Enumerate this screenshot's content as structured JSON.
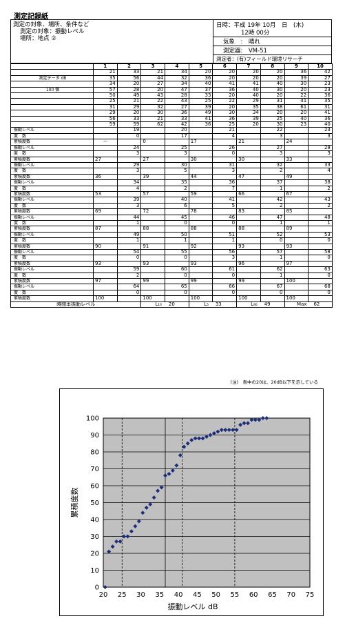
{
  "doc": {
    "title": "測定記録紙",
    "header_left": [
      "測定の対象、場所、条件など",
      "測定の対象：振動レベル",
      "場所：地点 ②"
    ],
    "header_right": {
      "date": "日時：平成 19年 10月　日　(木)",
      "time": "12時 00分",
      "weather": "気象　:　晴れ",
      "instrument": "測定器:　VM-51",
      "measurer": "測定者：(有)フィールド環境リサーチ"
    }
  },
  "table": {
    "col_headers": [
      "1",
      "2",
      "3",
      "4",
      "5",
      "6",
      "7",
      "8",
      "9",
      "10"
    ],
    "side_label_1": "測定データ dB",
    "side_label_2": "100 個",
    "data_rows": [
      [
        "21",
        "33",
        "21",
        "34",
        "20",
        "20",
        "20",
        "20",
        "36",
        "42"
      ],
      [
        "35",
        "56",
        "44",
        "32",
        "36",
        "20",
        "20",
        "20",
        "39",
        "27"
      ],
      [
        "34",
        "20",
        "27",
        "34",
        "40",
        "41",
        "41",
        "40",
        "30",
        "23"
      ],
      [
        "57",
        "28",
        "20",
        "47",
        "37",
        "36",
        "40",
        "30",
        "20",
        "23"
      ],
      [
        "50",
        "49",
        "43",
        "28",
        "33",
        "20",
        "40",
        "20",
        "22",
        "36"
      ],
      [
        "25",
        "21",
        "22",
        "43",
        "25",
        "22",
        "29",
        "31",
        "41",
        "35"
      ],
      [
        "31",
        "29",
        "32",
        "27",
        "39",
        "20",
        "35",
        "38",
        "61",
        "31"
      ],
      [
        "29",
        "20",
        "30",
        "36",
        "49",
        "30",
        "34",
        "20",
        "20",
        "41"
      ],
      [
        "56",
        "33",
        "21",
        "33",
        "41",
        "36",
        "39",
        "25",
        "40",
        "36"
      ],
      [
        "59",
        "59",
        "62",
        "42",
        "36",
        "25",
        "20",
        "30",
        "23",
        "40"
      ]
    ],
    "labels": {
      "level": "振動レベル",
      "freq": "度　数",
      "cum": "累積度数"
    },
    "groups": [
      {
        "level": [
          "19",
          "20",
          "21",
          "22",
          "23"
        ],
        "freq": [
          "0",
          "17",
          "4",
          "3",
          "3"
        ],
        "cum": [
          "－",
          "0",
          "17",
          "21",
          "24"
        ]
      },
      {
        "level": [
          "24",
          "25",
          "26",
          "27",
          "28"
        ],
        "freq": [
          "3",
          "3",
          "0",
          "3",
          "3"
        ],
        "cum": [
          "27",
          "27",
          "30",
          "30",
          "33"
        ]
      },
      {
        "level": [
          "29",
          "30",
          "31",
          "32",
          "33"
        ],
        "freq": [
          "3",
          "5",
          "3",
          "2",
          "4"
        ],
        "cum": [
          "36",
          "39",
          "44",
          "47",
          "49"
        ]
      },
      {
        "level": [
          "34",
          "35",
          "36",
          "37",
          "38"
        ],
        "freq": [
          "4",
          "2",
          "7",
          "1",
          "2"
        ],
        "cum": [
          "53",
          "57",
          "59",
          "66",
          "67"
        ]
      },
      {
        "level": [
          "39",
          "40",
          "41",
          "42",
          "43"
        ],
        "freq": [
          "3",
          "6",
          "5",
          "2",
          "2"
        ],
        "cum": [
          "69",
          "72",
          "78",
          "83",
          "85"
        ]
      },
      {
        "level": [
          "44",
          "45",
          "46",
          "47",
          "48"
        ],
        "freq": [
          "1",
          "0",
          "0",
          "1",
          "1"
        ],
        "cum": [
          "87",
          "88",
          "88",
          "88",
          "89"
        ]
      },
      {
        "level": [
          "49",
          "50",
          "51",
          "52",
          "53"
        ],
        "freq": [
          "1",
          "1",
          "1",
          "0",
          "0"
        ],
        "cum": [
          "90",
          "91",
          "92",
          "93",
          "93"
        ]
      },
      {
        "level": [
          "54",
          "55",
          "56",
          "57",
          "58"
        ],
        "freq": [
          "0",
          "0",
          "3",
          "1",
          "0"
        ],
        "cum": [
          "93",
          "93",
          "93",
          "96",
          "97"
        ]
      },
      {
        "level": [
          "59",
          "60",
          "61",
          "62",
          "63"
        ],
        "freq": [
          "2",
          "0",
          "0",
          "1",
          "0"
        ],
        "cum": [
          "97",
          "99",
          "99",
          "99",
          "100"
        ]
      },
      {
        "level": [
          "64",
          "65",
          "66",
          "67",
          "68"
        ],
        "freq": [
          "0",
          "0",
          "0",
          "0",
          "0"
        ],
        "cum": [
          "100",
          "100",
          "100",
          "100",
          "100"
        ]
      }
    ],
    "footer": {
      "label": "時間率振動レベル",
      "l10_label": "L₁₀",
      "l10_value": "20",
      "l5_label": "L₅",
      "l5_value": "33",
      "l90_label": "L₉₀",
      "l90_value": "49",
      "max_label": "Max",
      "max_value": "62"
    }
  },
  "note": "(注)　表中の20は、20dB以下を示している",
  "chart_data": {
    "type": "scatter",
    "xlabel": "振動レベル dB",
    "ylabel": "累積度数",
    "xlim": [
      20,
      75
    ],
    "ylim": [
      0,
      100
    ],
    "xticks": [
      "20",
      "25",
      "30",
      "35",
      "40",
      "45",
      "50",
      "55",
      "60",
      "65",
      "70",
      "75"
    ],
    "yticks": [
      "0",
      "10",
      "20",
      "30",
      "40",
      "50",
      "60",
      "70",
      "80",
      "90",
      "100"
    ],
    "vlines": [
      25,
      36.5,
      41,
      55
    ],
    "colors": {
      "plot_bg": "#c0c0c0",
      "marker": "#1c2e7a",
      "grid": "#000000"
    },
    "points": [
      [
        20.5,
        0
      ],
      [
        21.5,
        21
      ],
      [
        22.5,
        24
      ],
      [
        23.5,
        27
      ],
      [
        24.5,
        27
      ],
      [
        25.5,
        30
      ],
      [
        26.5,
        30
      ],
      [
        27.5,
        33
      ],
      [
        28.5,
        36
      ],
      [
        29.5,
        39
      ],
      [
        30.5,
        44
      ],
      [
        31.5,
        47
      ],
      [
        32.5,
        49
      ],
      [
        33.5,
        53
      ],
      [
        34.5,
        57
      ],
      [
        35.5,
        59
      ],
      [
        36.5,
        66
      ],
      [
        37.5,
        67
      ],
      [
        38.5,
        69
      ],
      [
        39.5,
        72
      ],
      [
        40.5,
        78
      ],
      [
        41.5,
        83
      ],
      [
        42.5,
        85
      ],
      [
        43.5,
        87
      ],
      [
        44.5,
        88
      ],
      [
        45.5,
        88
      ],
      [
        46.5,
        88
      ],
      [
        47.5,
        89
      ],
      [
        48.5,
        90
      ],
      [
        49.5,
        91
      ],
      [
        50.5,
        92
      ],
      [
        51.5,
        93
      ],
      [
        52.5,
        93
      ],
      [
        53.5,
        93
      ],
      [
        54.5,
        93
      ],
      [
        55.5,
        93
      ],
      [
        56.5,
        96
      ],
      [
        57.5,
        97
      ],
      [
        58.5,
        97
      ],
      [
        59.5,
        99
      ],
      [
        60.5,
        99
      ],
      [
        61.5,
        99
      ],
      [
        62.5,
        100
      ],
      [
        63.5,
        100
      ]
    ]
  }
}
